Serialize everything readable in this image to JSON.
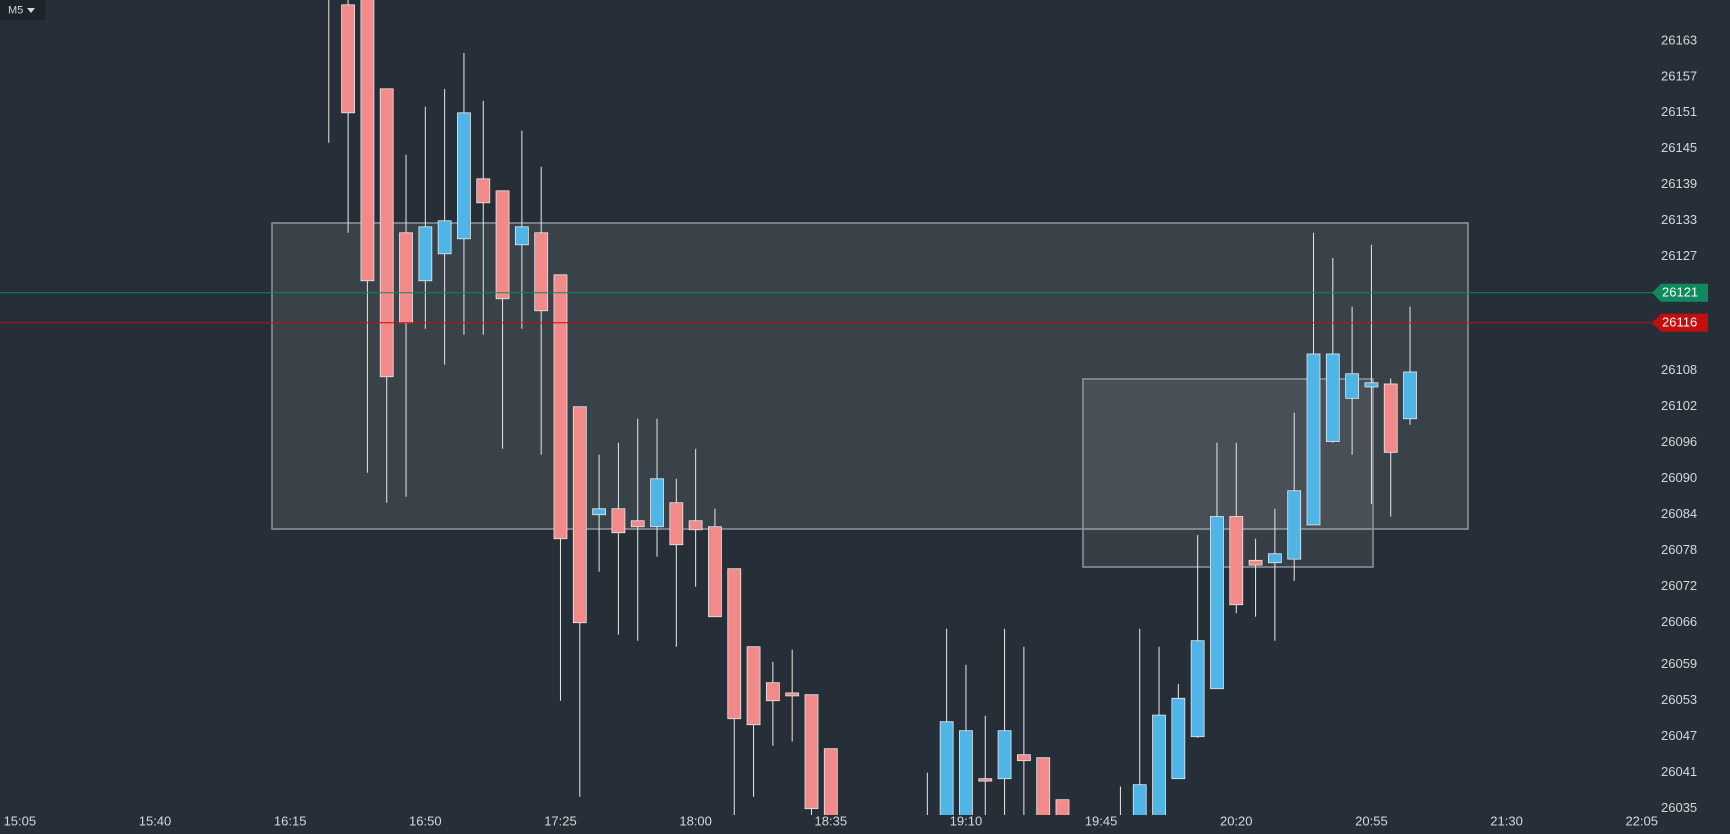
{
  "timeframe": "M5",
  "chart_data": {
    "type": "candlestick",
    "up_color": "#4fb4e6",
    "down_color": "#f28a8a",
    "ylim": [
      26034,
      26170
    ],
    "yticks": [
      26163,
      26157,
      26151,
      26145,
      26139,
      26133,
      26127,
      26108,
      26102,
      26096,
      26090,
      26084,
      26078,
      26072,
      26066,
      26059,
      26053,
      26047,
      26041,
      26035
    ],
    "xticks": [
      "15:05",
      "15:40",
      "16:15",
      "16:50",
      "17:25",
      "18:00",
      "18:35",
      "19:10",
      "19:45",
      "20:20",
      "20:55",
      "21:30",
      "22:05"
    ],
    "price_lines": [
      {
        "value": 26121,
        "color": "#0f8a5f"
      },
      {
        "value": 26116,
        "color": "#c40d0d"
      }
    ],
    "x": [
      "16:25",
      "16:30",
      "16:35",
      "16:40",
      "16:45",
      "16:50",
      "16:55",
      "17:00",
      "17:05",
      "17:10",
      "17:15",
      "17:20",
      "17:25",
      "17:30",
      "17:35",
      "17:40",
      "17:45",
      "17:50",
      "17:55",
      "18:00",
      "18:05",
      "18:10",
      "18:15",
      "18:20",
      "18:25",
      "18:30",
      "18:35",
      "19:00",
      "19:05",
      "19:10",
      "19:15",
      "19:20",
      "19:25",
      "19:30",
      "19:35",
      "19:50",
      "19:55",
      "20:00",
      "20:05",
      "20:10",
      "20:15",
      "20:20",
      "20:25",
      "20:30",
      "20:35",
      "20:40",
      "20:45",
      "20:50",
      "20:55",
      "21:00",
      "21:05"
    ],
    "open": [
      26175,
      26169,
      26170,
      26155,
      26131,
      26123,
      26127.5,
      26130,
      26140,
      26138,
      26129,
      26131,
      26124,
      26102,
      26084,
      26085,
      26083,
      26082,
      26086,
      26083,
      26082,
      26075,
      26062,
      26056,
      26054.3,
      26054,
      26045,
      26030,
      26030,
      26030,
      26040,
      26040,
      26044,
      26043.5,
      26036.5,
      26030,
      26030,
      26030,
      26040,
      26047,
      26055,
      26083.7,
      26076.4,
      26076,
      26076.6,
      26082.3,
      26096.2,
      26103.4,
      26105.3,
      26105.8,
      26100
    ],
    "high": [
      26178,
      26170,
      26171,
      26155,
      26144,
      26152,
      26155,
      26161,
      26153,
      26138,
      26148,
      26142,
      26124,
      26102,
      26094,
      26096,
      26100,
      26100,
      26090,
      26095,
      26085,
      26075,
      26062,
      26059.5,
      26061.5,
      26054,
      26045,
      26041,
      26065,
      26059,
      26050.5,
      26065,
      26062,
      26043.5,
      26036.5,
      26038.7,
      26065,
      26062,
      26055.8,
      26080.6,
      26096,
      26096,
      26080,
      26085,
      26101,
      26131,
      26126.8,
      26118.7,
      26129,
      26106.7,
      26118.7
    ],
    "low": [
      26146,
      26131,
      26091,
      26086,
      26087,
      26115,
      26109,
      26114,
      26114,
      26095,
      26115,
      26094,
      26053,
      26037,
      26074.5,
      26064,
      26063,
      26077,
      26062,
      26072,
      26067,
      26030,
      26037,
      26045.5,
      26046.2,
      26030,
      26028,
      26028,
      26028,
      26028,
      26028,
      26028,
      26028,
      26028,
      26028,
      26028,
      26028,
      26028,
      26040,
      26046.8,
      26055,
      26067.6,
      26067,
      26063,
      26073,
      26082.3,
      26096,
      26094,
      26085.8,
      26083.7,
      26099
    ],
    "close": [
      26171,
      26151,
      26123,
      26107,
      26116,
      26132,
      26133,
      26151,
      26136,
      26120,
      26132,
      26118,
      26080,
      26066,
      26085,
      26081,
      26082,
      26090,
      26079,
      26081.5,
      26067,
      26050,
      26049,
      26053,
      26053.8,
      26035,
      26030,
      26032,
      26049.5,
      26048,
      26039.6,
      26048,
      26043,
      26030,
      26030,
      26031,
      26039,
      26050.6,
      26053.4,
      26063,
      26083.7,
      26069,
      26075.6,
      26077.5,
      26088,
      26110.8,
      26110.8,
      26107.5,
      26106,
      26094.4,
      26107.8
    ]
  }
}
